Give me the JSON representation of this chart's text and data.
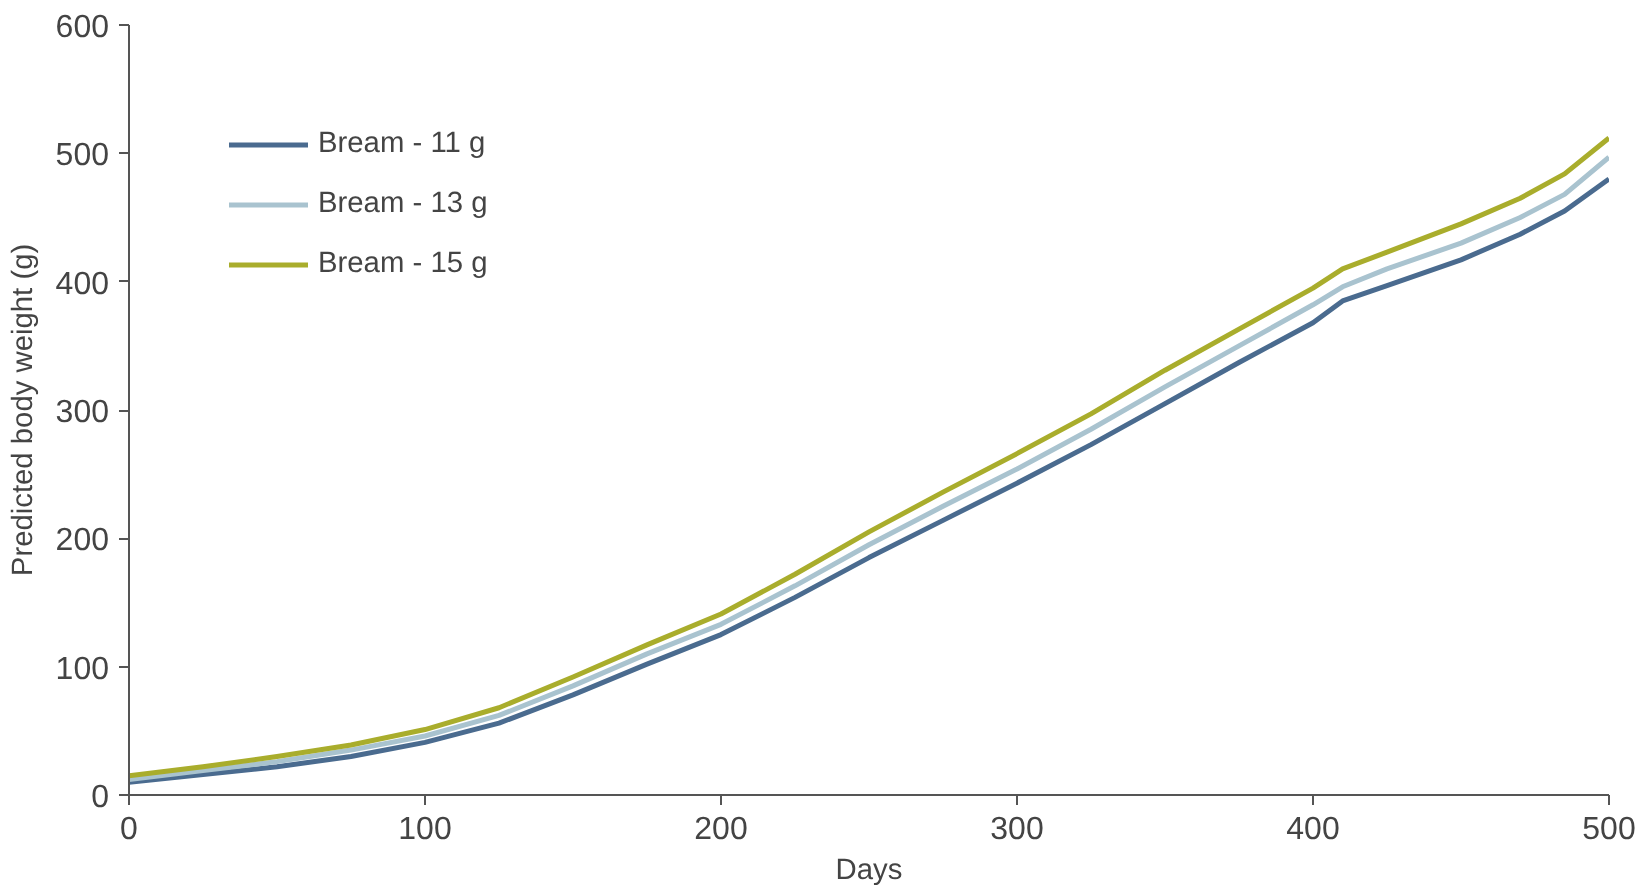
{
  "chart_data": {
    "type": "line",
    "xlabel": "Days",
    "ylabel": "Predicted body weight (g)",
    "x": [
      0,
      25,
      50,
      75,
      100,
      125,
      150,
      175,
      200,
      225,
      250,
      275,
      300,
      325,
      350,
      375,
      400,
      410,
      425,
      450,
      470,
      485,
      500
    ],
    "series": [
      {
        "name": "Bream - 11 g",
        "color": "#4a6b8f",
        "values": [
          10,
          16,
          22,
          30,
          41,
          56,
          78,
          102,
          125,
          154,
          185,
          214,
          243,
          273,
          305,
          337,
          368,
          385,
          397,
          417,
          437,
          455,
          480
        ]
      },
      {
        "name": "Bream - 13 g",
        "color": "#a9c3cf",
        "values": [
          12,
          19,
          26,
          35,
          46,
          62,
          85,
          110,
          133,
          163,
          195,
          225,
          254,
          285,
          318,
          350,
          382,
          396,
          410,
          430,
          450,
          468,
          497
        ]
      },
      {
        "name": "Bream - 15 g",
        "color": "#a9ad2c",
        "values": [
          15,
          22,
          30,
          39,
          51,
          68,
          92,
          117,
          141,
          172,
          205,
          236,
          266,
          297,
          331,
          363,
          395,
          410,
          423,
          445,
          465,
          484,
          512
        ]
      }
    ],
    "xlim": [
      0,
      500
    ],
    "xticks": [
      0,
      100,
      200,
      300,
      400,
      500
    ],
    "ylim": [
      0,
      600
    ],
    "yticks": [
      0,
      100,
      200,
      300,
      400,
      500,
      600
    ],
    "grid": false,
    "legend": "top left",
    "marker": "none",
    "line_style": "solid"
  }
}
